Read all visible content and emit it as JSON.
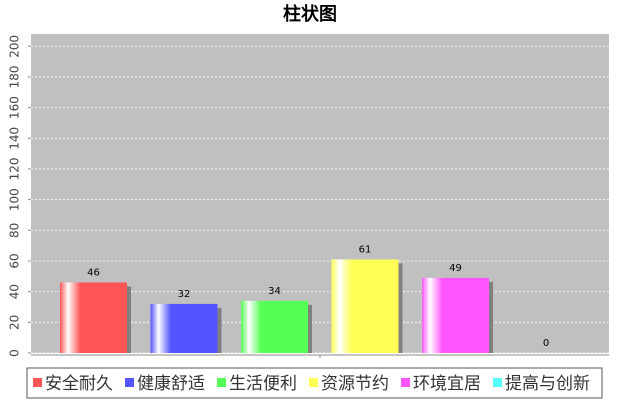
{
  "chart_data": {
    "type": "bar",
    "title": "柱状图",
    "categories": [
      null
    ],
    "series": [
      {
        "name": "安全耐久",
        "color": "#ff5555",
        "values": [
          46
        ]
      },
      {
        "name": "健康舒适",
        "color": "#5555ff",
        "values": [
          32
        ]
      },
      {
        "name": "生活便利",
        "color": "#55ff55",
        "values": [
          34
        ]
      },
      {
        "name": "资源节约",
        "color": "#ffff55",
        "values": [
          61
        ]
      },
      {
        "name": "环境宜居",
        "color": "#ff55ff",
        "values": [
          49
        ]
      },
      {
        "name": "提高与创新",
        "color": "#55ffff",
        "values": [
          0
        ]
      }
    ],
    "ylim": [
      0,
      208
    ],
    "yticks": [
      0,
      20,
      40,
      60,
      80,
      100,
      120,
      140,
      160,
      180,
      200
    ],
    "grid": true
  }
}
